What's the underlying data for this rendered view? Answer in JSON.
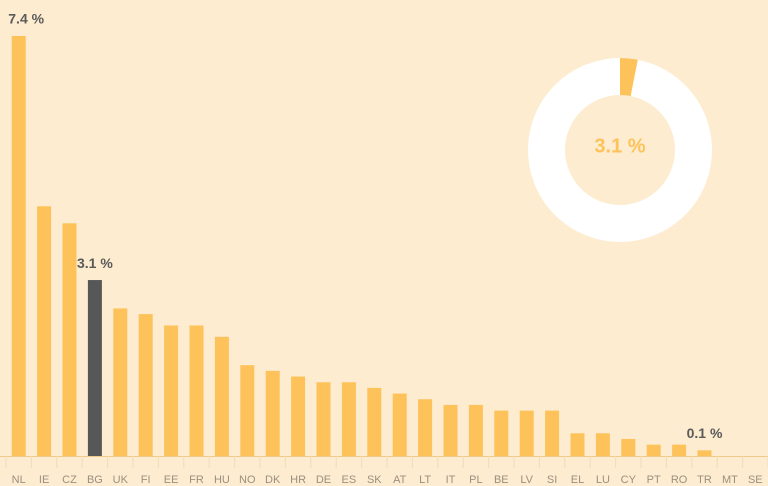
{
  "chart_data": [
    {
      "type": "bar",
      "categories": [
        "NL",
        "IE",
        "CZ",
        "BG",
        "UK",
        "FI",
        "EE",
        "FR",
        "HU",
        "NO",
        "DK",
        "HR",
        "DE",
        "ES",
        "SK",
        "AT",
        "LT",
        "IT",
        "PL",
        "BE",
        "LV",
        "SI",
        "EL",
        "LU",
        "CY",
        "PT",
        "RO",
        "TR",
        "MT",
        "SE"
      ],
      "values": [
        7.4,
        4.4,
        4.1,
        3.1,
        2.6,
        2.5,
        2.3,
        2.3,
        2.1,
        1.6,
        1.5,
        1.4,
        1.3,
        1.3,
        1.2,
        1.1,
        1.0,
        0.9,
        0.9,
        0.8,
        0.8,
        0.8,
        0.4,
        0.4,
        0.3,
        0.2,
        0.2,
        0.1,
        0,
        0
      ],
      "value_labels": [
        "7.4 %",
        null,
        null,
        "3.1 %",
        null,
        null,
        null,
        null,
        null,
        null,
        null,
        null,
        null,
        null,
        null,
        null,
        null,
        null,
        null,
        null,
        null,
        null,
        null,
        null,
        null,
        null,
        null,
        "0.1 %",
        null,
        null
      ],
      "color": "#fdc35a",
      "highlight": "BG",
      "highlight_color": "#575757"
    },
    {
      "type": "pie",
      "values": [
        3.1
      ],
      "value_labels": [
        "3.1 %"
      ],
      "color": "#fdc35a",
      "track_color": "#ffffff"
    }
  ]
}
